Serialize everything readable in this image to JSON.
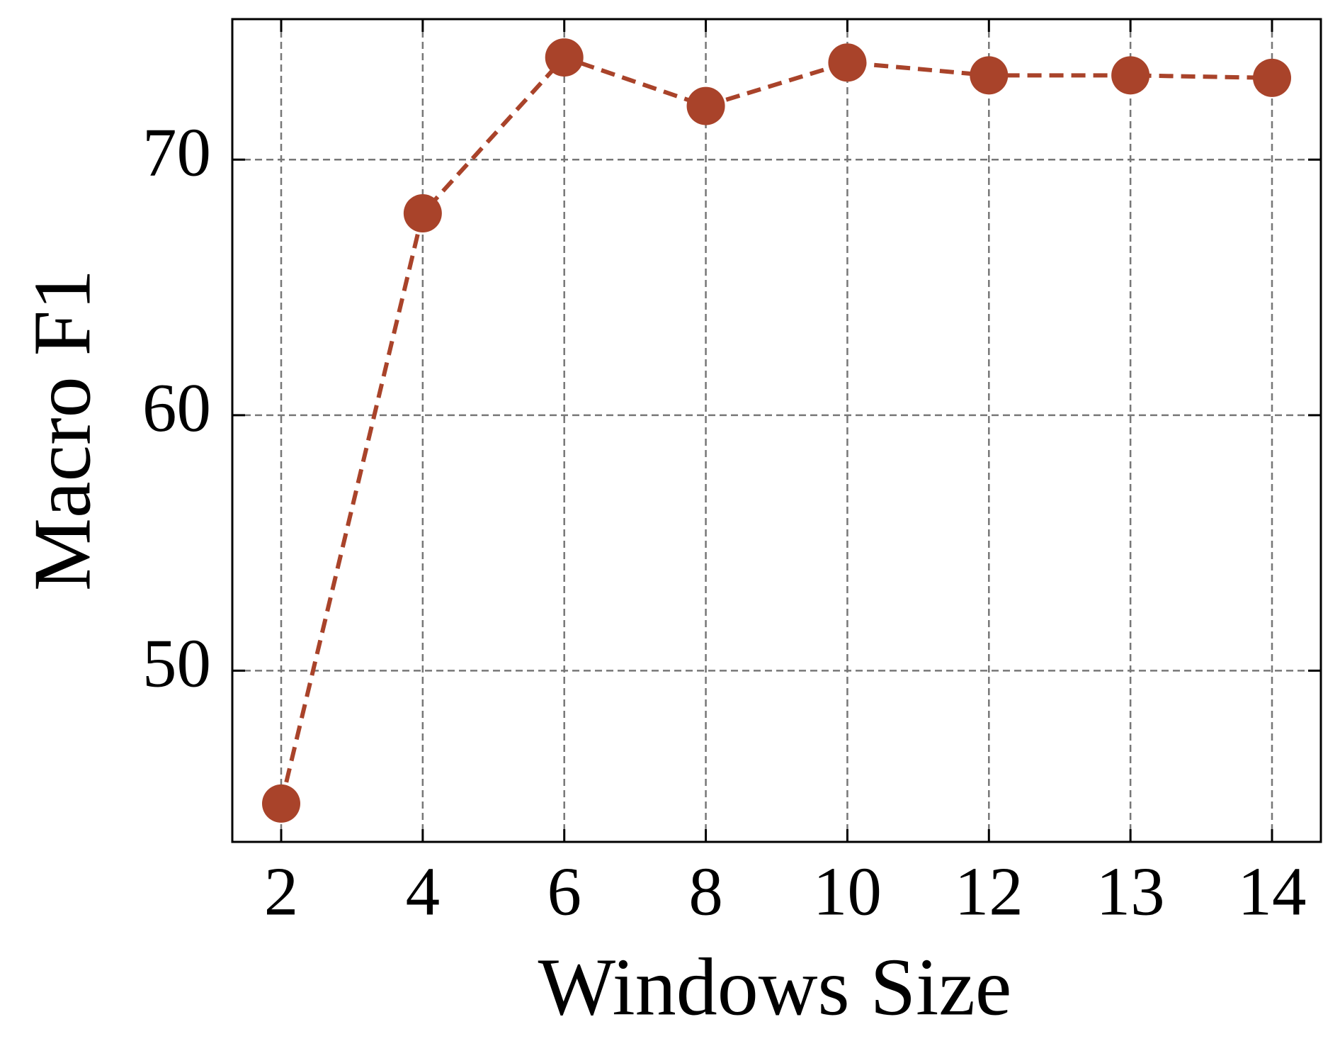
{
  "chart_data": {
    "type": "line",
    "x_label": "Windows Size",
    "y_label": "Macro F1",
    "categories": [
      "2",
      "4",
      "6",
      "8",
      "10",
      "12",
      "13",
      "14"
    ],
    "series": [
      {
        "name": "Macro F1",
        "color": "#a9432a",
        "values": [
          44.8,
          67.9,
          74.0,
          72.1,
          73.8,
          73.3,
          73.3,
          73.2
        ]
      }
    ],
    "ylim": [
      43.3,
      75.5
    ],
    "yticks": [
      50,
      60,
      70
    ],
    "grid": true
  }
}
